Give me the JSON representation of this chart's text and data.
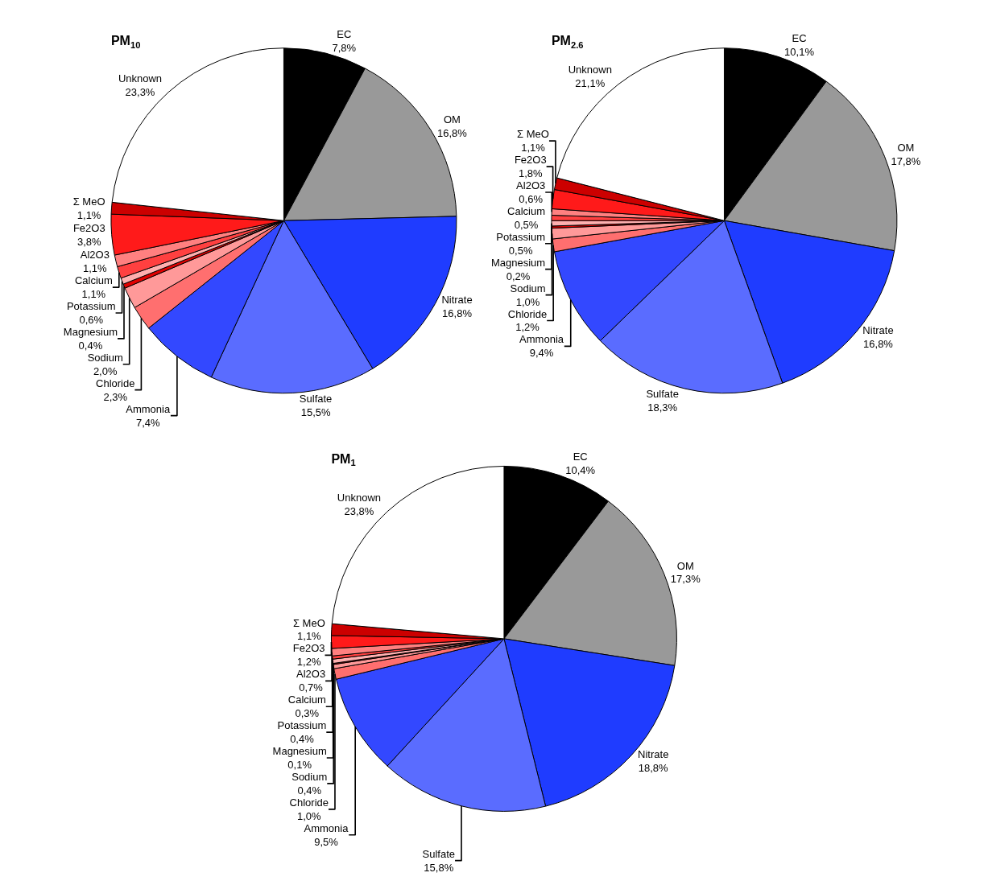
{
  "chart_data": [
    {
      "type": "pie",
      "title": "PM$_{10}$",
      "categories": [
        "EC",
        "OM",
        "Nitrate",
        "Sulfate",
        "Ammonia",
        "Chloride",
        "Sodium",
        "Magnesium",
        "Potassium",
        "Calcium",
        "Al2O3",
        "Fe2O3",
        "Σ MeO",
        "Unknown"
      ],
      "values": [
        7.8,
        16.8,
        16.8,
        15.5,
        7.4,
        2.3,
        2.0,
        0.4,
        0.6,
        1.1,
        1.1,
        3.8,
        1.1,
        23.3
      ],
      "value_labels": [
        "7,8%",
        "16,8%",
        "16,8%",
        "15,5%",
        "7,4%",
        "2,3%",
        "2,0%",
        "0,4%",
        "0,6%",
        "1,1%",
        "1,1%",
        "3,8%",
        "1,1%",
        "23,3%"
      ],
      "colors": [
        "#000000",
        "#999999",
        "#1f3cff",
        "#5a6cff",
        "#3348ff",
        "#ff6f6f",
        "#ff9999",
        "#e00000",
        "#ffb0b0",
        "#ff4040",
        "#ff8080",
        "#ff1a1a",
        "#cc0000",
        "#ffffff"
      ]
    },
    {
      "type": "pie",
      "title": "PM$_{2.6}$",
      "categories": [
        "EC",
        "OM",
        "Nitrate",
        "Sulfate",
        "Ammonia",
        "Chloride",
        "Sodium",
        "Magnesium",
        "Potassium",
        "Calcium",
        "Al2O3",
        "Fe2O3",
        "Σ MeO",
        "Unknown"
      ],
      "values": [
        10.1,
        17.8,
        16.8,
        18.3,
        9.4,
        1.2,
        1.0,
        0.2,
        0.5,
        0.5,
        0.6,
        1.8,
        1.1,
        21.1
      ],
      "value_labels": [
        "10,1%",
        "17,8%",
        "16,8%",
        "18,3%",
        "9,4%",
        "1,2%",
        "1,0%",
        "0,2%",
        "0,5%",
        "0,5%",
        "0,6%",
        "1,8%",
        "1,1%",
        "21,1%"
      ],
      "colors": [
        "#000000",
        "#999999",
        "#1f3cff",
        "#5a6cff",
        "#3348ff",
        "#ff6f6f",
        "#ff9999",
        "#e00000",
        "#ffb0b0",
        "#ff4040",
        "#ff8080",
        "#ff1a1a",
        "#cc0000",
        "#ffffff"
      ]
    },
    {
      "type": "pie",
      "title": "PM$_{1}$",
      "categories": [
        "EC",
        "OM",
        "Nitrate",
        "Sulfate",
        "Ammonia",
        "Chloride",
        "Sodium",
        "Magnesium",
        "Potassium",
        "Calcium",
        "Al2O3",
        "Fe2O3",
        "Σ MeO",
        "Unknown"
      ],
      "values": [
        10.4,
        17.3,
        18.8,
        15.8,
        9.5,
        1.0,
        0.4,
        0.1,
        0.4,
        0.3,
        0.7,
        1.2,
        1.1,
        23.8
      ],
      "value_labels": [
        "10,4%",
        "17,3%",
        "18,8%",
        "15,8%",
        "9,5%",
        "1,0%",
        "0,4%",
        "0,1%",
        "0,4%",
        "0,3%",
        "0,7%",
        "1,2%",
        "1,1%",
        "23,8%"
      ],
      "colors": [
        "#000000",
        "#999999",
        "#1f3cff",
        "#5a6cff",
        "#3348ff",
        "#ff6f6f",
        "#ff9999",
        "#e00000",
        "#ffb0b0",
        "#ff4040",
        "#ff8080",
        "#ff1a1a",
        "#cc0000",
        "#ffffff"
      ]
    }
  ]
}
